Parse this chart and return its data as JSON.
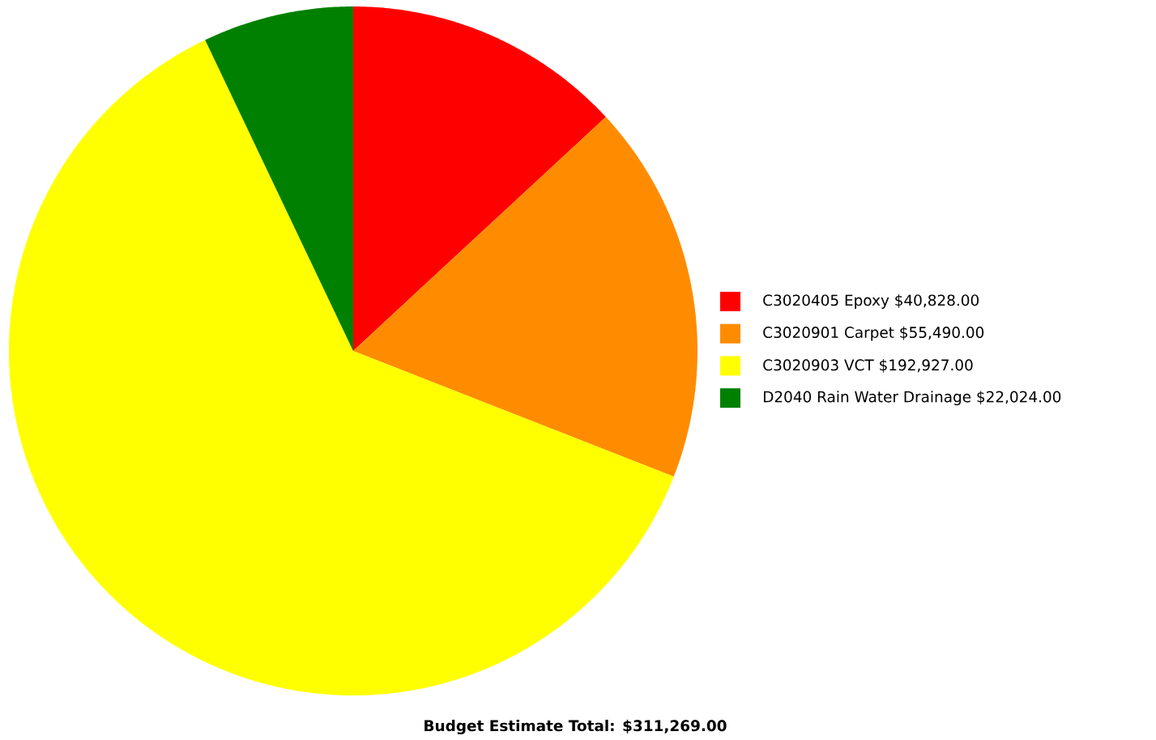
{
  "chart_data": {
    "type": "pie",
    "title": "Budget Estimate Total: $311,269.00",
    "categories": [
      "C3020405 Epoxy $40,828.00",
      "C3020901 Carpet $55,490.00",
      "C3020903 VCT $192,927.00",
      "D2040 Rain Water Drainage $22,024.00"
    ],
    "values": [
      40828,
      55490,
      192927,
      22024
    ],
    "colors": [
      "#ff0000",
      "#ff8c00",
      "#ffff00",
      "#008000"
    ],
    "legend": "right"
  }
}
